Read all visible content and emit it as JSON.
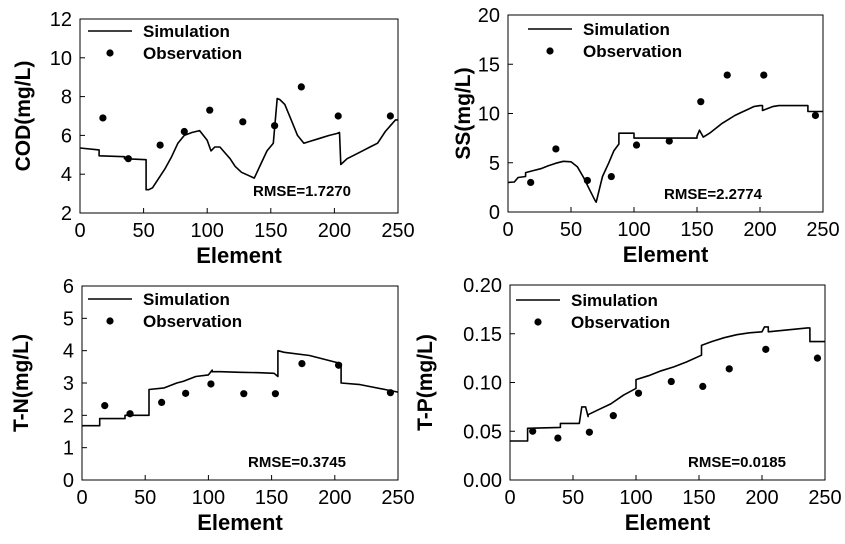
{
  "chart_data": [
    {
      "type": "line",
      "xlabel": "Element",
      "ylabel": "COD(mg/L)",
      "xlim": [
        0,
        250
      ],
      "ylim": [
        2,
        12
      ],
      "xticks": [
        "0",
        "50",
        "100",
        "150",
        "200",
        "250"
      ],
      "yticks": [
        "2",
        "4",
        "6",
        "8",
        "10",
        "12"
      ],
      "legend": {
        "placement": "top-left",
        "entries": [
          "Simulation",
          "Observation"
        ]
      },
      "annotation": "RMSE=1.7270",
      "series": [
        {
          "name": "Simulation",
          "kind": "line",
          "x": [
            0,
            15,
            15,
            35,
            35,
            52,
            52,
            54,
            57,
            62,
            67,
            72,
            77,
            82,
            88,
            94,
            100,
            103,
            106,
            110,
            114,
            118,
            122,
            127,
            132,
            137,
            142,
            147,
            152,
            155,
            157,
            161,
            166,
            171,
            176,
            181,
            186,
            191,
            196,
            202,
            204,
            205,
            210,
            216,
            222,
            228,
            234,
            240,
            244,
            248,
            250
          ],
          "y": [
            5.35,
            5.25,
            4.95,
            4.9,
            4.8,
            4.75,
            3.2,
            3.2,
            3.3,
            3.8,
            4.3,
            4.9,
            5.6,
            6.0,
            6.15,
            6.25,
            5.75,
            5.2,
            5.4,
            5.4,
            5.1,
            4.8,
            4.4,
            4.1,
            3.95,
            3.8,
            4.5,
            5.2,
            5.6,
            7.9,
            7.85,
            7.6,
            6.8,
            6.0,
            5.6,
            5.7,
            5.8,
            5.9,
            6.0,
            6.1,
            6.15,
            4.5,
            4.8,
            5.0,
            5.2,
            5.4,
            5.6,
            6.2,
            6.5,
            6.8,
            6.8
          ]
        },
        {
          "name": "Observation",
          "kind": "scatter",
          "x": [
            18,
            38,
            63,
            82,
            102,
            128,
            153,
            174,
            203,
            244
          ],
          "y": [
            6.9,
            4.8,
            5.5,
            6.2,
            7.3,
            6.7,
            6.5,
            8.5,
            7.0,
            7.0
          ]
        }
      ]
    },
    {
      "type": "line",
      "xlabel": "Element",
      "ylabel": "SS(mg/L)",
      "xlim": [
        0,
        250
      ],
      "ylim": [
        0,
        20
      ],
      "xticks": [
        "0",
        "50",
        "100",
        "150",
        "200",
        "250"
      ],
      "yticks": [
        "0",
        "5",
        "10",
        "15",
        "20"
      ],
      "legend": {
        "placement": "top-center",
        "entries": [
          "Simulation",
          "Observation"
        ]
      },
      "annotation": "RMSE=2.2774",
      "series": [
        {
          "name": "Simulation",
          "kind": "line",
          "x": [
            0,
            5,
            8,
            14,
            14,
            20,
            26,
            32,
            38,
            44,
            50,
            55,
            60,
            65,
            69,
            70,
            75,
            80,
            84,
            88,
            88,
            100,
            100,
            150,
            150,
            152,
            155,
            160,
            165,
            170,
            175,
            180,
            185,
            190,
            195,
            200,
            202,
            202,
            210,
            215,
            220,
            225,
            230,
            238,
            238,
            250
          ],
          "y": [
            3.0,
            3.05,
            3.5,
            3.6,
            4.0,
            4.2,
            4.4,
            4.7,
            4.95,
            5.15,
            5.1,
            4.6,
            3.5,
            2.2,
            1.2,
            1.0,
            3.6,
            5.0,
            6.2,
            6.9,
            8.0,
            8.0,
            7.5,
            7.5,
            7.7,
            8.3,
            7.6,
            8.0,
            8.5,
            9.0,
            9.4,
            9.8,
            10.1,
            10.4,
            10.7,
            10.8,
            10.8,
            10.3,
            10.7,
            10.8,
            10.8,
            10.8,
            10.8,
            10.8,
            10.2,
            10.2
          ]
        },
        {
          "name": "Observation",
          "kind": "scatter",
          "x": [
            18,
            38,
            63,
            82,
            102,
            128,
            153,
            174,
            203,
            244
          ],
          "y": [
            3.0,
            6.4,
            3.2,
            3.6,
            6.8,
            7.2,
            11.2,
            13.9,
            13.9,
            9.8
          ]
        }
      ]
    },
    {
      "type": "line",
      "xlabel": "Element",
      "ylabel": "T-N(mg/L)",
      "xlim": [
        0,
        250
      ],
      "ylim": [
        0,
        6
      ],
      "xticks": [
        "0",
        "50",
        "100",
        "150",
        "200",
        "250"
      ],
      "yticks": [
        "0",
        "1",
        "2",
        "3",
        "4",
        "5",
        "6"
      ],
      "legend": {
        "placement": "top-left",
        "entries": [
          "Simulation",
          "Observation"
        ]
      },
      "annotation": "RMSE=0.3745",
      "series": [
        {
          "name": "Simulation",
          "kind": "line",
          "x": [
            0,
            14,
            14,
            34,
            34,
            53,
            53,
            65,
            75,
            80,
            90,
            100,
            103,
            103,
            110,
            125,
            140,
            152,
            155,
            155,
            160,
            180,
            195,
            205,
            205,
            220,
            250
          ],
          "y": [
            1.68,
            1.68,
            1.9,
            1.9,
            2.0,
            2.0,
            2.8,
            2.85,
            3.0,
            3.05,
            3.2,
            3.25,
            3.4,
            3.35,
            3.35,
            3.33,
            3.32,
            3.3,
            3.2,
            4.0,
            3.95,
            3.85,
            3.7,
            3.6,
            3.0,
            2.95,
            2.72
          ]
        },
        {
          "name": "Observation",
          "kind": "scatter",
          "x": [
            18,
            38,
            63,
            82,
            102,
            128,
            153,
            174,
            203,
            244
          ],
          "y": [
            2.3,
            2.05,
            2.4,
            2.68,
            2.97,
            2.67,
            2.67,
            3.6,
            3.55,
            2.7
          ]
        }
      ]
    },
    {
      "type": "line",
      "xlabel": "Element",
      "ylabel": "T-P(mg/L)",
      "xlim": [
        0,
        250
      ],
      "ylim": [
        0,
        0.2
      ],
      "xticks": [
        "0",
        "50",
        "100",
        "150",
        "200",
        "250"
      ],
      "yticks": [
        "0.00",
        "0.05",
        "0.10",
        "0.15",
        "0.20"
      ],
      "legend": {
        "placement": "top-left",
        "entries": [
          "Simulation",
          "Observation"
        ]
      },
      "annotation": "RMSE=0.0185",
      "series": [
        {
          "name": "Simulation",
          "kind": "line",
          "x": [
            0,
            14,
            14,
            40,
            40,
            55,
            57,
            60,
            62,
            62,
            70,
            80,
            90,
            100,
            100,
            110,
            120,
            130,
            140,
            152,
            152,
            160,
            170,
            180,
            190,
            200,
            202,
            205,
            205,
            220,
            236,
            238,
            238,
            250
          ],
          "y": [
            0.04,
            0.04,
            0.053,
            0.054,
            0.058,
            0.058,
            0.075,
            0.075,
            0.065,
            0.067,
            0.072,
            0.078,
            0.087,
            0.094,
            0.103,
            0.107,
            0.112,
            0.116,
            0.121,
            0.128,
            0.138,
            0.142,
            0.146,
            0.149,
            0.151,
            0.152,
            0.157,
            0.157,
            0.152,
            0.154,
            0.156,
            0.156,
            0.142,
            0.142
          ]
        },
        {
          "name": "Observation",
          "kind": "scatter",
          "x": [
            18,
            38,
            63,
            82,
            102,
            128,
            153,
            174,
            203,
            244
          ],
          "y": [
            0.05,
            0.043,
            0.049,
            0.066,
            0.089,
            0.101,
            0.096,
            0.114,
            0.134,
            0.125
          ]
        }
      ]
    }
  ]
}
